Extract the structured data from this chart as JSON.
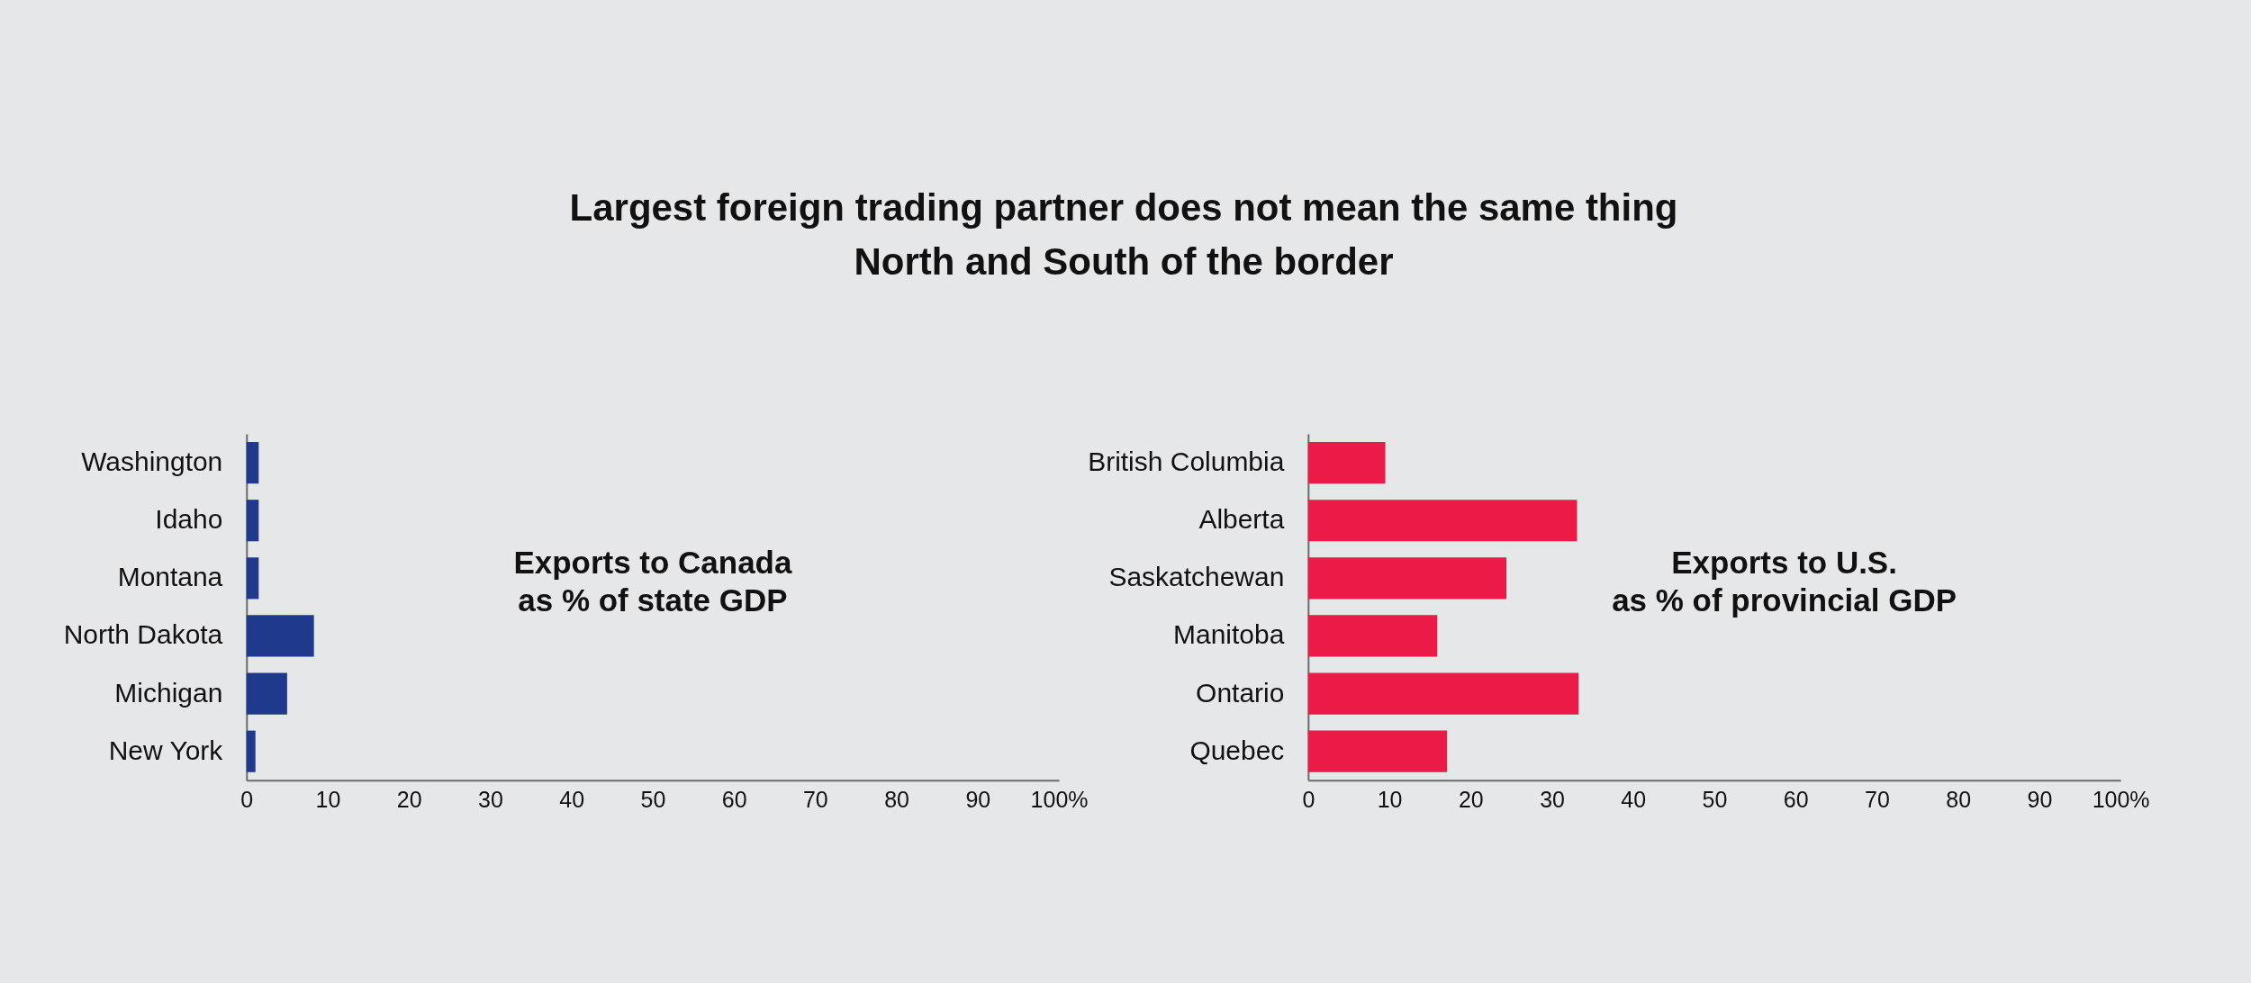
{
  "chart_data": [
    {
      "type": "bar",
      "orientation": "horizontal",
      "title": "Largest foreign trading partner does not mean the same thing\nNorth and South of the border",
      "annotations": [
        "Exports to Canada\nas % of state GDP"
      ],
      "categories": [
        "Washington",
        "Idaho",
        "Montana",
        "North Dakota",
        "Michigan",
        "New York"
      ],
      "values": [
        1.5,
        1.5,
        1.5,
        8.3,
        5.0,
        1.1
      ],
      "color": "#1f3a8c",
      "xlim": [
        0,
        100
      ],
      "xticks": [
        0,
        10,
        20,
        30,
        40,
        50,
        60,
        70,
        80,
        90,
        {
          "value": 100,
          "label": "100%"
        }
      ]
    },
    {
      "type": "bar",
      "orientation": "horizontal",
      "annotations": [
        "Exports to U.S.\nas % of provincial GDP"
      ],
      "categories": [
        "British Columbia",
        "Alberta",
        "Saskatchewan",
        "Manitoba",
        "Ontario",
        "Quebec"
      ],
      "values": [
        9.5,
        33.1,
        24.4,
        15.9,
        33.3,
        17.1
      ],
      "color": "#eb1a46",
      "xlim": [
        0,
        100
      ],
      "xticks": [
        0,
        10,
        20,
        30,
        40,
        50,
        60,
        70,
        80,
        90,
        {
          "value": 100,
          "label": "100%"
        }
      ]
    }
  ]
}
